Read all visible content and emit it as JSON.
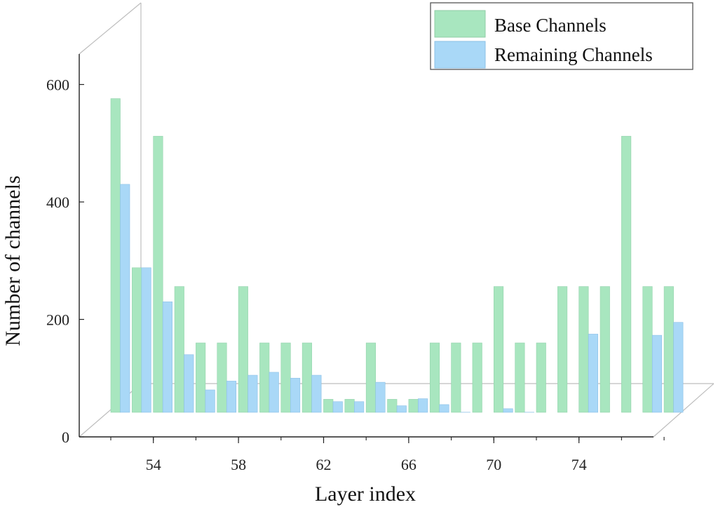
{
  "chart_data": {
    "type": "bar",
    "style": "3d-grouped",
    "xlabel": "Layer index",
    "ylabel": "Number of channels",
    "x_tick_labels": [
      "54",
      "58",
      "62",
      "66",
      "70",
      "74"
    ],
    "y_tick_labels": [
      "0",
      "200",
      "400",
      "600"
    ],
    "ylim": [
      0,
      600
    ],
    "legend_position": "top-right",
    "grid": false,
    "categories": [
      52,
      53,
      54,
      55,
      56,
      57,
      58,
      59,
      60,
      61,
      62,
      63,
      64,
      65,
      66,
      67,
      68,
      69,
      70,
      71,
      72,
      73,
      74,
      75,
      76,
      77,
      78
    ],
    "series": [
      {
        "name": "Base Channels",
        "color": "#a8e6bf",
        "values": [
          576,
          288,
          512,
          256,
          160,
          160,
          256,
          160,
          160,
          160,
          64,
          64,
          160,
          64,
          64,
          160,
          160,
          160,
          256,
          160,
          160,
          256,
          256,
          256,
          512,
          256,
          256
        ]
      },
      {
        "name": "Remaining Channels",
        "color": "#a9d8f7",
        "values": [
          430,
          288,
          230,
          140,
          80,
          95,
          105,
          110,
          100,
          105,
          60,
          60,
          93,
          53,
          65,
          55,
          42,
          20,
          48,
          42,
          38,
          4,
          175,
          6,
          6,
          173,
          195
        ]
      }
    ]
  }
}
